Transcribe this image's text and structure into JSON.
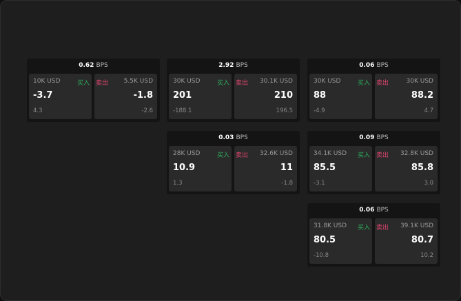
{
  "unit": "BPS",
  "buy_label": "买入",
  "sell_label": "卖出",
  "colors": {
    "buy": "#2fae5e",
    "sell": "#e0456e",
    "background": "#1e1e1e"
  },
  "cards": [
    {
      "spread": "0.62",
      "buy": {
        "amount": "10K USD",
        "price": "-3.7",
        "change": "4.3"
      },
      "sell": {
        "amount": "5.5K USD",
        "price": "-1.8",
        "change": "-2.6"
      }
    },
    {
      "spread": "2.92",
      "buy": {
        "amount": "30K USD",
        "price": "201",
        "change": "-188.1"
      },
      "sell": {
        "amount": "30.1K USD",
        "price": "210",
        "change": "196.5"
      }
    },
    {
      "spread": "0.06",
      "buy": {
        "amount": "30K USD",
        "price": "88",
        "change": "-4.9"
      },
      "sell": {
        "amount": "30K USD",
        "price": "88.2",
        "change": "4.7"
      }
    },
    {
      "spread": "0.03",
      "buy": {
        "amount": "28K USD",
        "price": "10.9",
        "change": "1.3"
      },
      "sell": {
        "amount": "32.6K USD",
        "price": "11",
        "change": "-1.8"
      }
    },
    {
      "spread": "0.09",
      "buy": {
        "amount": "34.1K USD",
        "price": "85.5",
        "change": "-3.1"
      },
      "sell": {
        "amount": "32.8K USD",
        "price": "85.8",
        "change": "3.0"
      }
    },
    {
      "spread": "0.06",
      "buy": {
        "amount": "31.8K USD",
        "price": "80.5",
        "change": "-10.8"
      },
      "sell": {
        "amount": "39.1K USD",
        "price": "80.7",
        "change": "10.2"
      }
    }
  ]
}
